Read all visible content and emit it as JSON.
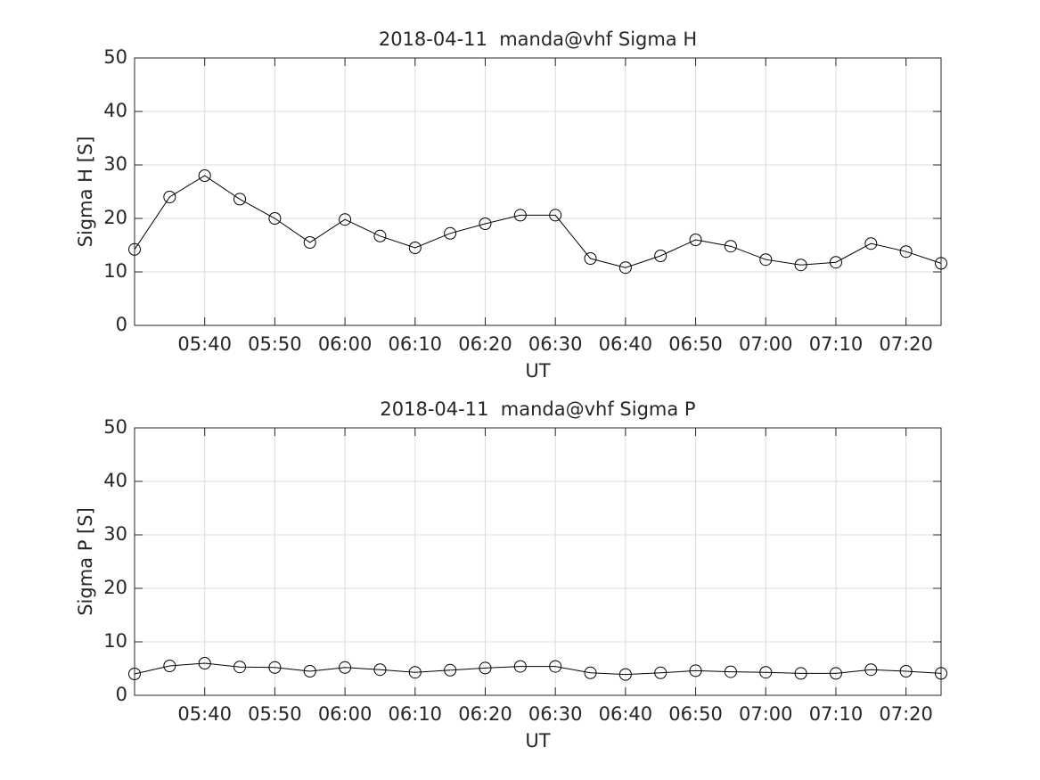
{
  "chart_data": [
    {
      "type": "line",
      "title": "2018-04-11  manda@vhf Sigma H",
      "xlabel": "UT",
      "ylabel": "Sigma H [S]",
      "x": [
        "05:30",
        "05:35",
        "05:40",
        "05:45",
        "05:50",
        "05:55",
        "06:00",
        "06:05",
        "06:10",
        "06:15",
        "06:20",
        "06:25",
        "06:30",
        "06:35",
        "06:40",
        "06:45",
        "06:50",
        "06:55",
        "07:00",
        "07:05",
        "07:10",
        "07:15",
        "07:20",
        "07:25"
      ],
      "values": [
        14.2,
        24,
        28,
        23.6,
        20,
        15.5,
        19.8,
        16.7,
        14.5,
        17.2,
        19,
        20.6,
        20.6,
        12.5,
        10.8,
        13,
        16,
        14.8,
        12.3,
        11.3,
        11.8,
        15.3,
        13.8,
        11.6
      ],
      "color": "#000000",
      "marker": "circle",
      "xlim": [
        "05:30",
        "07:25"
      ],
      "xticks": [
        "05:40",
        "05:50",
        "06:00",
        "06:10",
        "06:20",
        "06:30",
        "06:40",
        "06:50",
        "07:00",
        "07:10",
        "07:20"
      ],
      "ylim": [
        0,
        50
      ],
      "yticks": [
        0,
        10,
        20,
        30,
        40,
        50
      ],
      "grid": true
    },
    {
      "type": "line",
      "title": "2018-04-11  manda@vhf Sigma P",
      "xlabel": "UT",
      "ylabel": "Sigma P [S]",
      "x": [
        "05:30",
        "05:35",
        "05:40",
        "05:45",
        "05:50",
        "05:55",
        "06:00",
        "06:05",
        "06:10",
        "06:15",
        "06:20",
        "06:25",
        "06:30",
        "06:35",
        "06:40",
        "06:45",
        "06:50",
        "06:55",
        "07:00",
        "07:05",
        "07:10",
        "07:15",
        "07:20",
        "07:25"
      ],
      "values": [
        4,
        5.5,
        6,
        5.3,
        5.2,
        4.5,
        5.2,
        4.8,
        4.3,
        4.7,
        5.1,
        5.4,
        5.4,
        4.2,
        3.9,
        4.2,
        4.6,
        4.4,
        4.3,
        4.1,
        4.1,
        4.8,
        4.5,
        4.1
      ],
      "color": "#000000",
      "marker": "circle",
      "xlim": [
        "05:30",
        "07:25"
      ],
      "xticks": [
        "05:40",
        "05:50",
        "06:00",
        "06:10",
        "06:20",
        "06:30",
        "06:40",
        "06:50",
        "07:00",
        "07:10",
        "07:20"
      ],
      "ylim": [
        0,
        50
      ],
      "yticks": [
        0,
        10,
        20,
        30,
        40,
        50
      ],
      "grid": true
    }
  ]
}
